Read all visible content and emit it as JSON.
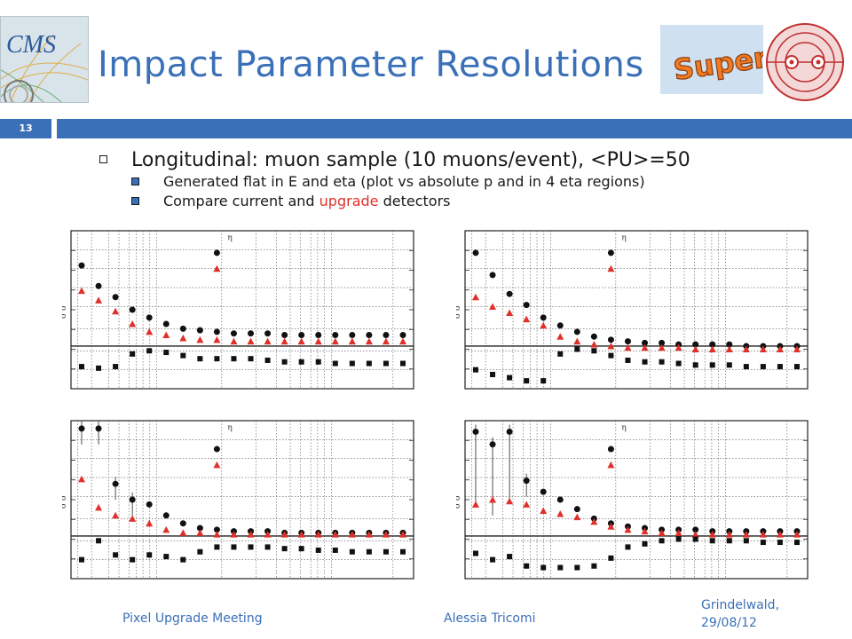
{
  "header": {
    "title": "Impact Parameter Resolutions",
    "slide_number": "13",
    "logo_cms_text": "CMS",
    "logo_super_text": "Super"
  },
  "bullets": {
    "main": "Longitudinal: muon sample (10 muons/event), <PU>=50",
    "sub1": "Generated flat in E and eta (plot vs absolute p and in 4 eta regions)",
    "sub2_prefix": "Compare current and ",
    "sub2_highlight": "upgrade",
    "sub2_suffix": " detectors"
  },
  "footer": {
    "left": "Pixel Upgrade Meeting",
    "center": "Alessia Tricomi",
    "right_line1": "Grindelwald,",
    "right_line2": "29/08/12"
  },
  "colors": {
    "accent": "#3a70b8",
    "current": "#111111",
    "upgrade": "#e0302a"
  },
  "chart_data": [
    {
      "type": "scatter",
      "ylabel": "σ δ",
      "annotation": "η",
      "x": [
        1,
        2,
        3,
        4,
        5,
        6,
        7,
        8,
        9,
        10,
        11,
        12,
        13,
        14,
        15,
        16,
        17,
        18,
        19,
        20
      ],
      "series": [
        {
          "marker": "circle",
          "values": [
            0.78,
            0.65,
            0.58,
            0.5,
            0.45,
            0.41,
            0.38,
            0.37,
            0.36,
            0.35,
            0.35,
            0.35,
            0.34,
            0.34,
            0.34,
            0.34,
            0.34,
            0.34,
            0.34,
            0.34
          ]
        },
        {
          "marker": "triangle",
          "values": [
            0.62,
            0.56,
            0.49,
            0.41,
            0.36,
            0.34,
            0.32,
            0.31,
            0.31,
            0.3,
            0.3,
            0.3,
            0.3,
            0.3,
            0.3,
            0.3,
            0.3,
            0.3,
            0.3,
            0.3
          ]
        },
        {
          "marker": "square",
          "values": [
            0.14,
            0.13,
            0.14,
            0.22,
            0.24,
            0.23,
            0.21,
            0.19,
            0.19,
            0.19,
            0.19,
            0.18,
            0.17,
            0.17,
            0.17,
            0.16,
            0.16,
            0.16,
            0.16,
            0.16
          ]
        }
      ],
      "legend_markers": {
        "circle_y": 0.86,
        "triangle_y": 0.76,
        "x": 9
      }
    },
    {
      "type": "scatter",
      "ylabel": "σ δ",
      "annotation": "η",
      "x": [
        1,
        2,
        3,
        4,
        5,
        6,
        7,
        8,
        9,
        10,
        11,
        12,
        13,
        14,
        15,
        16,
        17,
        18,
        19,
        20
      ],
      "series": [
        {
          "marker": "circle",
          "values": [
            0.86,
            0.72,
            0.6,
            0.53,
            0.45,
            0.4,
            0.36,
            0.33,
            0.31,
            0.3,
            0.29,
            0.29,
            0.28,
            0.28,
            0.28,
            0.28,
            0.27,
            0.27,
            0.27,
            0.27
          ]
        },
        {
          "marker": "triangle",
          "values": [
            0.58,
            0.52,
            0.48,
            0.44,
            0.4,
            0.33,
            0.3,
            0.28,
            0.27,
            0.26,
            0.26,
            0.26,
            0.26,
            0.25,
            0.25,
            0.25,
            0.25,
            0.25,
            0.25,
            0.25
          ]
        },
        {
          "marker": "square",
          "values": [
            0.12,
            0.09,
            0.07,
            0.05,
            0.05,
            0.22,
            0.25,
            0.24,
            0.21,
            0.18,
            0.17,
            0.17,
            0.16,
            0.15,
            0.15,
            0.15,
            0.14,
            0.14,
            0.14,
            0.14
          ]
        }
      ],
      "legend_markers": {
        "circle_y": 0.86,
        "triangle_y": 0.76,
        "x": 9
      }
    },
    {
      "type": "scatter",
      "ylabel": "σ δ",
      "annotation": "η",
      "x": [
        1,
        2,
        3,
        4,
        5,
        6,
        7,
        8,
        9,
        10,
        11,
        12,
        13,
        14,
        15,
        16,
        17,
        18,
        19,
        20
      ],
      "series": [
        {
          "marker": "circle",
          "values": [
            0.95,
            0.95,
            0.6,
            0.5,
            0.47,
            0.4,
            0.35,
            0.32,
            0.31,
            0.3,
            0.3,
            0.3,
            0.29,
            0.29,
            0.29,
            0.29,
            0.29,
            0.29,
            0.29,
            0.29
          ]
        },
        {
          "marker": "triangle",
          "values": [
            0.63,
            0.45,
            0.4,
            0.38,
            0.35,
            0.31,
            0.29,
            0.29,
            0.28,
            0.28,
            0.28,
            0.28,
            0.28,
            0.28,
            0.28,
            0.28,
            0.28,
            0.28,
            0.28,
            0.28
          ]
        },
        {
          "marker": "square",
          "values": [
            0.12,
            0.24,
            0.15,
            0.12,
            0.15,
            0.14,
            0.12,
            0.17,
            0.2,
            0.2,
            0.2,
            0.2,
            0.19,
            0.19,
            0.18,
            0.18,
            0.17,
            0.17,
            0.17,
            0.17
          ]
        }
      ],
      "legend_markers": {
        "circle_y": 0.82,
        "triangle_y": 0.72,
        "x": 9
      }
    },
    {
      "type": "scatter",
      "ylabel": "σ δ",
      "annotation": "η",
      "x": [
        1,
        2,
        3,
        4,
        5,
        6,
        7,
        8,
        9,
        10,
        11,
        12,
        13,
        14,
        15,
        16,
        17,
        18,
        19,
        20
      ],
      "series": [
        {
          "marker": "circle",
          "values": [
            0.93,
            0.85,
            0.93,
            0.62,
            0.55,
            0.5,
            0.44,
            0.38,
            0.35,
            0.33,
            0.32,
            0.31,
            0.31,
            0.31,
            0.3,
            0.3,
            0.3,
            0.3,
            0.3,
            0.3
          ]
        },
        {
          "marker": "triangle",
          "values": [
            0.47,
            0.5,
            0.49,
            0.47,
            0.43,
            0.41,
            0.39,
            0.36,
            0.33,
            0.31,
            0.3,
            0.29,
            0.29,
            0.28,
            0.28,
            0.28,
            0.28,
            0.28,
            0.28,
            0.28
          ]
        },
        {
          "marker": "square",
          "values": [
            0.16,
            0.12,
            0.14,
            0.08,
            0.07,
            0.07,
            0.07,
            0.08,
            0.13,
            0.2,
            0.22,
            0.24,
            0.25,
            0.25,
            0.24,
            0.24,
            0.24,
            0.23,
            0.23,
            0.23
          ]
        }
      ],
      "legend_markers": {
        "circle_y": 0.82,
        "triangle_y": 0.72,
        "x": 9
      }
    }
  ]
}
